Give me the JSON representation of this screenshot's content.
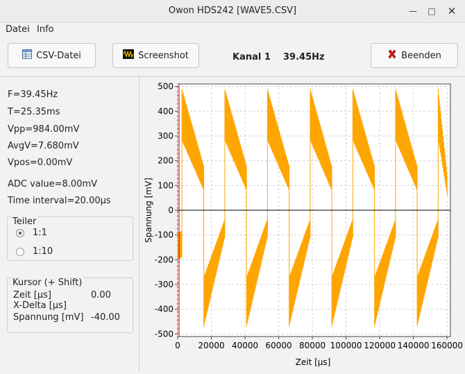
{
  "window": {
    "title": "Owon HDS242 [WAVE5.CSV]"
  },
  "menu": [
    "Datei",
    "Info"
  ],
  "toolbar": {
    "csv_label": "CSV-Datei",
    "screenshot_label": "Screenshot",
    "kanal_label": "Kanal 1",
    "freq_label": "39.45Hz",
    "quit_label": "Beenden"
  },
  "info": {
    "freq": "F=39.45Hz",
    "period": "T=25.35ms",
    "vpp": "Vpp=984.00mV",
    "avg": "AvgV=7.680mV",
    "vpos": "Vpos=0.00mV",
    "adc": "ADC value=8.00mV",
    "interval": "Time interval=20.00µs"
  },
  "teiler": {
    "title": "Teiler",
    "options": [
      {
        "label": "1:1",
        "selected": true
      },
      {
        "label": "1:10",
        "selected": false
      }
    ]
  },
  "cursor": {
    "title": "Kursor (+ Shift)",
    "rows": [
      {
        "key": "Zeit [µs]",
        "value": "0.00"
      },
      {
        "key": "X-Delta [µs]",
        "value": ""
      },
      {
        "key": "Spannung [mV]",
        "value": "-40.00"
      }
    ]
  },
  "colors": {
    "trace": "#ffa500",
    "cursor": "#c00000",
    "zero_line": "#000000"
  },
  "chart_data": {
    "type": "line",
    "xlabel": "Zeit [µs]",
    "ylabel": "Spannung [mV]",
    "xlim": [
      0,
      162000
    ],
    "ylim": [
      -510,
      510
    ],
    "xticks": [
      0,
      20000,
      40000,
      60000,
      80000,
      100000,
      120000,
      140000,
      160000
    ],
    "yticks": [
      -500,
      -400,
      -300,
      -200,
      -100,
      0,
      100,
      200,
      300,
      400,
      500
    ],
    "grid": true,
    "period_us": 25350,
    "series": [
      {
        "x": [
          0,
          2500,
          2550,
          15500,
          15550,
          28000,
          28050,
          40900,
          40950,
          53300,
          53350,
          66200,
          66250,
          78700,
          78750,
          91500,
          91550,
          104000,
          104050,
          116900,
          116950,
          129400,
          129450,
          142200,
          142250,
          154700,
          154750,
          160000
        ],
        "y": [
          -200,
          -190,
          490,
          180,
          -470,
          -110,
          490,
          180,
          -470,
          -110,
          490,
          180,
          -470,
          -110,
          490,
          180,
          -470,
          -110,
          490,
          180,
          -470,
          -110,
          490,
          180,
          -470,
          -110,
          490,
          150
        ]
      }
    ],
    "cursor_x": 0
  }
}
